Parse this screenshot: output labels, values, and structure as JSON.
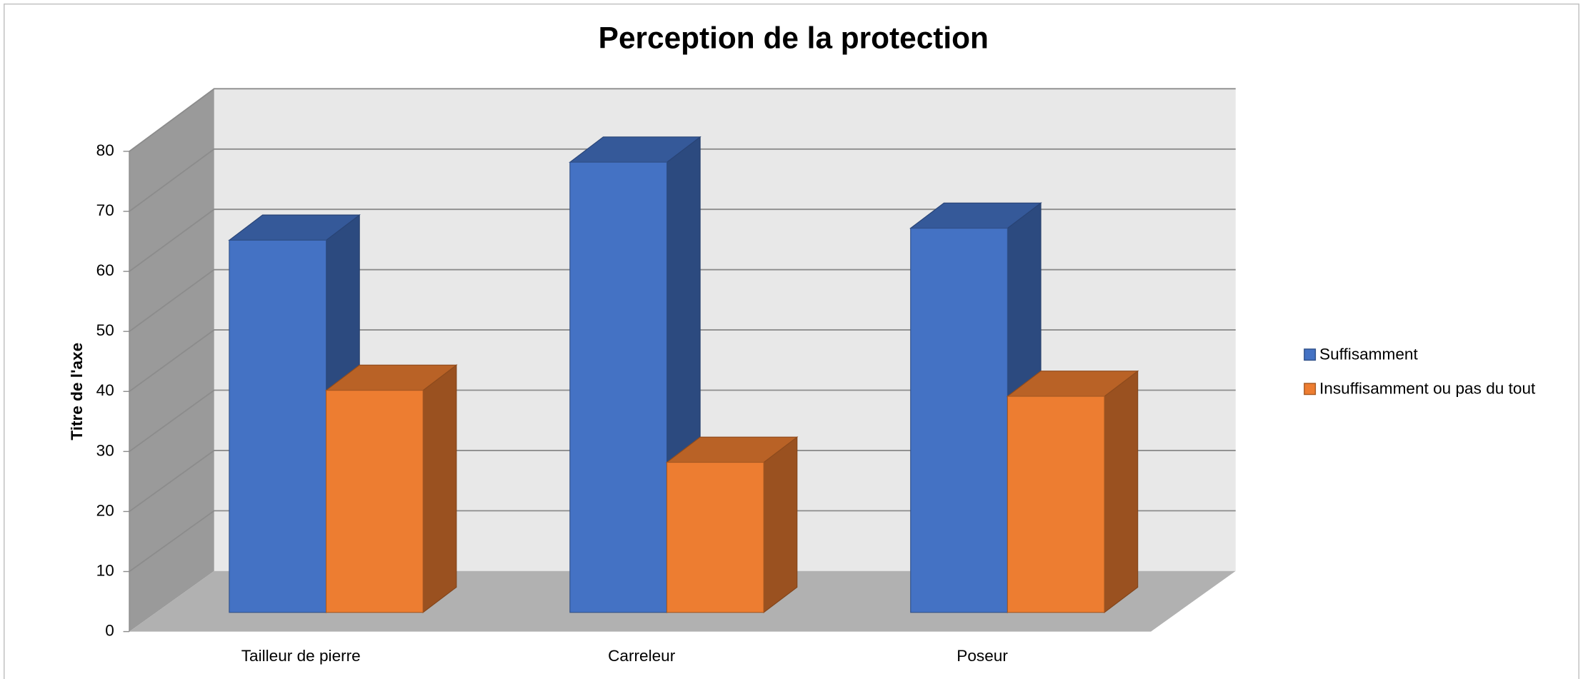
{
  "chart_data": {
    "type": "bar3d",
    "title": "Perception de la protection",
    "y_label": "Titre de l'axe",
    "categories": [
      "Tailleur de pierre",
      "Carreleur",
      "Poseur"
    ],
    "series": [
      {
        "name": "Suffisamment",
        "color": "#4472c4",
        "values": [
          62,
          75,
          64
        ]
      },
      {
        "name": "Insuffisamment ou pas du tout",
        "color": "#ed7d31",
        "values": [
          37,
          25,
          36
        ]
      }
    ],
    "ylim": [
      0,
      80
    ],
    "yticks": [
      0,
      10,
      20,
      30,
      40,
      50,
      60,
      70,
      80
    ],
    "grid": true,
    "legend": "right"
  }
}
